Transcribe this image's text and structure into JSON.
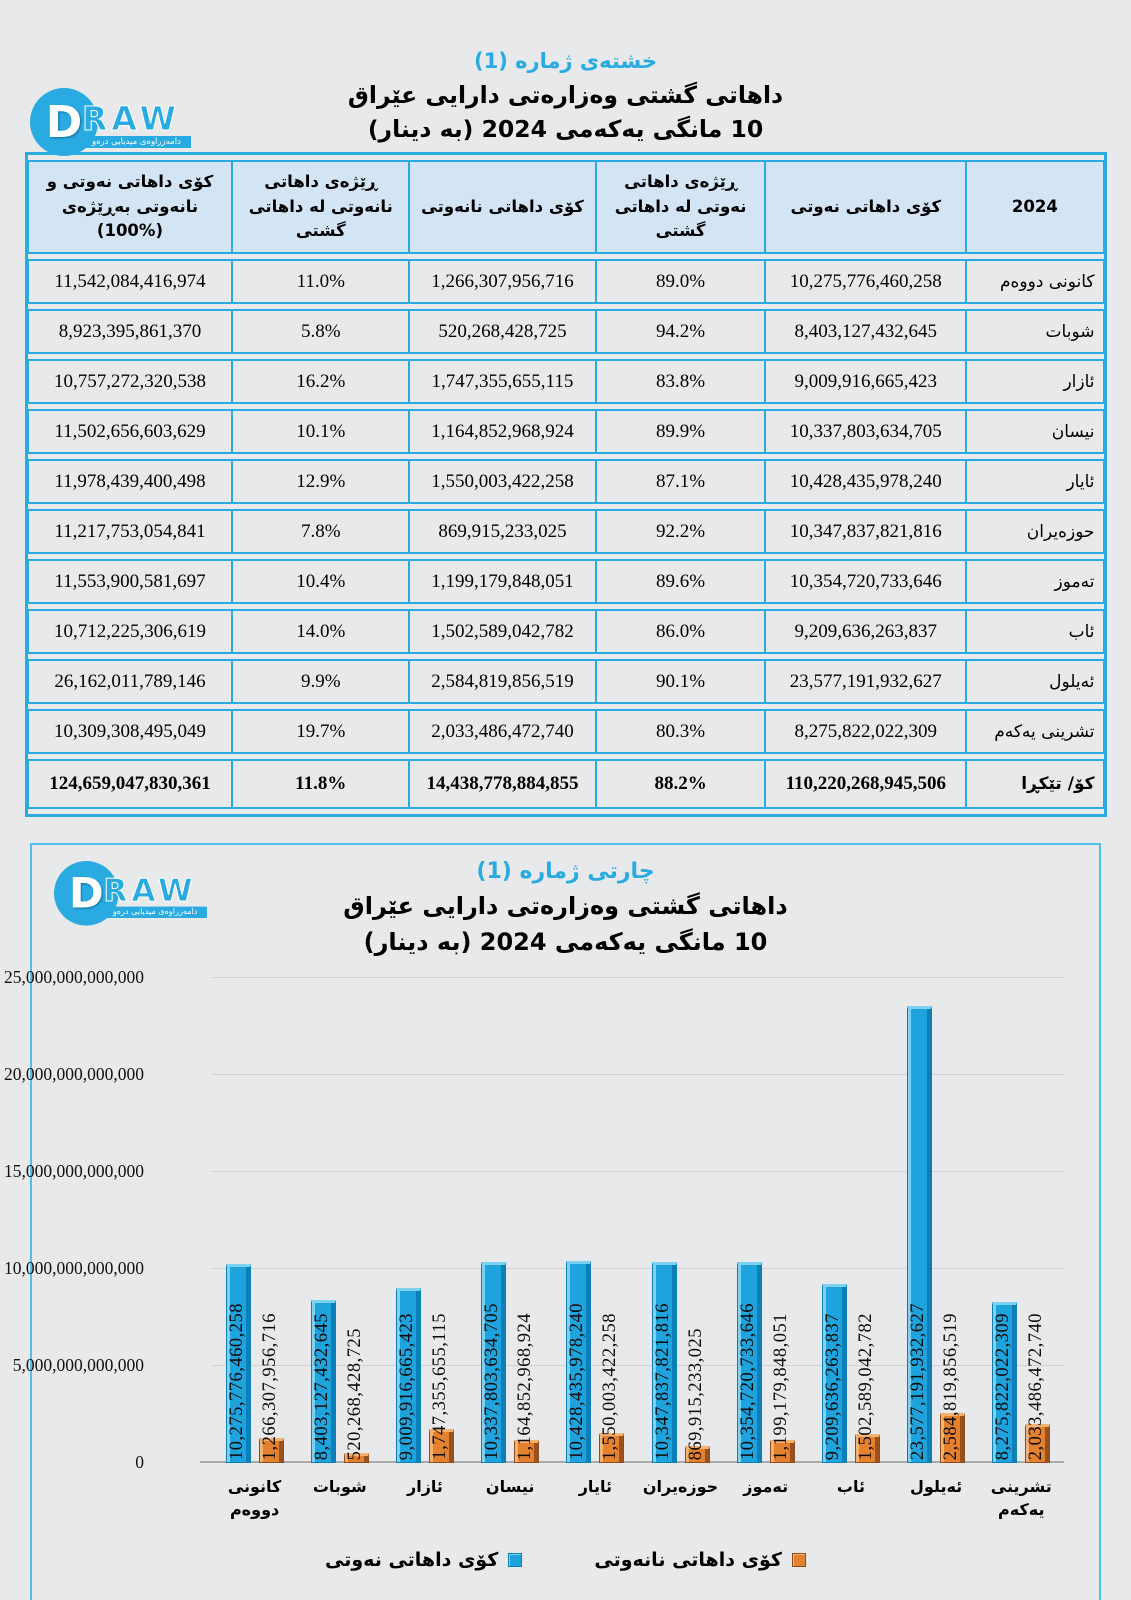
{
  "colors": {
    "accent_cyan": "#29ABE2",
    "page_background": "#E8E9EB",
    "table_header_background": "#D3E5F4",
    "oil_bar": "#1FA3DD",
    "nonoil_bar": "#E4812E"
  },
  "logo": {
    "letter": "D",
    "word": "RAW",
    "tagline": "دامەزراوەی میدیایی درەو"
  },
  "table_section": {
    "tag": "خشتەی ژماره (1)",
    "subtitle1": "داهاتی گشتی وەزارەتی دارایی عێراق",
    "subtitle2": "10 مانگی یەکەمی 2024 (بە دینار)",
    "columns": [
      "2024",
      "کۆی داهاتی نەوتی",
      "ڕێژەی داهاتی نەوتی لە داهاتی گشتی",
      "کۆی داهاتی نانەوتی",
      "ڕێژەی داهاتی نانەوتی لە داهاتی گشتی",
      "کۆی داهاتی نەوتی و نانەوتی بەڕێژەی (%100)"
    ],
    "rows": [
      {
        "month": "کانونی دووەم",
        "oil": "10,275,776,460,258",
        "oil_pct": "89.0%",
        "nonoil": "1,266,307,956,716",
        "nonoil_pct": "11.0%",
        "total": "11,542,084,416,974"
      },
      {
        "month": "شوبات",
        "oil": "8,403,127,432,645",
        "oil_pct": "94.2%",
        "nonoil": "520,268,428,725",
        "nonoil_pct": "5.8%",
        "total": "8,923,395,861,370"
      },
      {
        "month": "ئازار",
        "oil": "9,009,916,665,423",
        "oil_pct": "83.8%",
        "nonoil": "1,747,355,655,115",
        "nonoil_pct": "16.2%",
        "total": "10,757,272,320,538"
      },
      {
        "month": "نیسان",
        "oil": "10,337,803,634,705",
        "oil_pct": "89.9%",
        "nonoil": "1,164,852,968,924",
        "nonoil_pct": "10.1%",
        "total": "11,502,656,603,629"
      },
      {
        "month": "ئایار",
        "oil": "10,428,435,978,240",
        "oil_pct": "87.1%",
        "nonoil": "1,550,003,422,258",
        "nonoil_pct": "12.9%",
        "total": "11,978,439,400,498"
      },
      {
        "month": "حوزەیران",
        "oil": "10,347,837,821,816",
        "oil_pct": "92.2%",
        "nonoil": "869,915,233,025",
        "nonoil_pct": "7.8%",
        "total": "11,217,753,054,841"
      },
      {
        "month": "تەموز",
        "oil": "10,354,720,733,646",
        "oil_pct": "89.6%",
        "nonoil": "1,199,179,848,051",
        "nonoil_pct": "10.4%",
        "total": "11,553,900,581,697"
      },
      {
        "month": "ئاب",
        "oil": "9,209,636,263,837",
        "oil_pct": "86.0%",
        "nonoil": "1,502,589,042,782",
        "nonoil_pct": "14.0%",
        "total": "10,712,225,306,619"
      },
      {
        "month": "ئەیلول",
        "oil": "23,577,191,932,627",
        "oil_pct": "90.1%",
        "nonoil": "2,584,819,856,519",
        "nonoil_pct": "9.9%",
        "total": "26,162,011,789,146"
      },
      {
        "month": "تشرینی یەکەم",
        "oil": "8,275,822,022,309",
        "oil_pct": "80.3%",
        "nonoil": "2,033,486,472,740",
        "nonoil_pct": "19.7%",
        "total": "10,309,308,495,049"
      }
    ],
    "total_row": {
      "month": "کۆ/ تێکڕا",
      "oil": "110,220,268,945,506",
      "oil_pct": "88.2%",
      "nonoil": "14,438,778,884,855",
      "nonoil_pct": "11.8%",
      "total": "124,659,047,830,361"
    }
  },
  "chart_section": {
    "tag": "چارتی ژماره (1)",
    "subtitle1": "داهاتی گشتی وەزارەتی دارایی عێراق",
    "subtitle2": "10 مانگی یەکەمی 2024 (بە دینار)"
  },
  "chart_data": {
    "type": "bar",
    "title": "داهاتی گشتی وەزارەتی دارایی عێراق — 10 مانگی یەکەمی 2024 (بە دینار)",
    "categories": [
      "کانونی دووەم",
      "شوبات",
      "ئازار",
      "نیسان",
      "ئایار",
      "حوزەیران",
      "تەموز",
      "ئاب",
      "ئەیلول",
      "تشرینی یەکەم"
    ],
    "series": [
      {
        "name": "کۆی داهاتی نەوتی",
        "color": "#1FA3DD",
        "values": [
          10275776460258,
          8403127432645,
          9009916665423,
          10337803634705,
          10428435978240,
          10347837821816,
          10354720733646,
          9209636263837,
          23577191932627,
          8275822022309
        ]
      },
      {
        "name": "کۆی داهاتی نانەوتی",
        "color": "#E4812E",
        "values": [
          1266307956716,
          520268428725,
          1747355655115,
          1164852968924,
          1550003422258,
          869915233025,
          1199179848051,
          1502589042782,
          2584819856519,
          2033486472740
        ]
      }
    ],
    "ylim": [
      0,
      25000000000000
    ],
    "yticks": [
      "0",
      "5,000,000,000,000",
      "10,000,000,000,000",
      "15,000,000,000,000",
      "20,000,000,000,000",
      "25,000,000,000,000"
    ],
    "grid": true,
    "data_labels": "rotated-vertical, comma formatted",
    "legend_position": "bottom"
  }
}
